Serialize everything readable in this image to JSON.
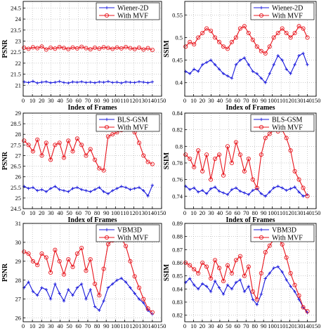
{
  "colors": {
    "red": "#e8141c",
    "blue": "#1a1adc",
    "axis": "#000000",
    "grid": "#9a9a9a"
  },
  "chart_data": [
    {
      "id": "p1",
      "type": "line",
      "ylabel": "PSNR",
      "xlabel": "Index of Frames",
      "xlim": [
        0,
        150
      ],
      "xticks": [
        "0",
        "10",
        "20",
        "30",
        "40",
        "50",
        "60",
        "70",
        "80",
        "90",
        "100",
        "110",
        "120",
        "130",
        "140",
        "150"
      ],
      "ylim": [
        20.5,
        24.8
      ],
      "yticks": [
        "21",
        "21.5",
        "22",
        "22.5",
        "23",
        "23.5",
        "24",
        "24.5"
      ],
      "legend_position": "top-right",
      "grid": true,
      "series": [
        {
          "name": "Wiener-2D",
          "color": "blue",
          "marker": "plus",
          "values": [
            21.15,
            21.12,
            21.18,
            21.1,
            21.14,
            21.16,
            21.11,
            21.13,
            21.17,
            21.12,
            21.1,
            21.15,
            21.13,
            21.16,
            21.12,
            21.14,
            21.11,
            21.15,
            21.13,
            21.17,
            21.12,
            21.14,
            21.1,
            21.15,
            21.13,
            21.12,
            21.16,
            21.14,
            21.11,
            21.15
          ]
        },
        {
          "name": "With MVF",
          "color": "red",
          "marker": "circle",
          "values": [
            22.7,
            22.65,
            22.72,
            22.68,
            22.75,
            22.62,
            22.7,
            22.66,
            22.73,
            22.69,
            22.64,
            22.71,
            22.67,
            22.74,
            22.68,
            22.63,
            22.7,
            22.66,
            22.72,
            22.69,
            22.65,
            22.71,
            22.67,
            22.73,
            22.68,
            22.64,
            22.7,
            22.62,
            22.68,
            22.6
          ]
        }
      ]
    },
    {
      "id": "p2",
      "type": "line",
      "ylabel": "SSIM",
      "xlabel": "Index of Frames",
      "xlim": [
        0,
        150
      ],
      "xticks": [
        "0",
        "10",
        "20",
        "30",
        "40",
        "50",
        "60",
        "70",
        "80",
        "90",
        "100",
        "110",
        "120",
        "130",
        "140",
        "150"
      ],
      "ylim": [
        0.37,
        0.58
      ],
      "yticks": [
        "0.4",
        "0.45",
        "0.5",
        "0.55"
      ],
      "legend_position": "top-right",
      "grid": true,
      "series": [
        {
          "name": "Wiener-2D",
          "color": "blue",
          "marker": "plus",
          "values": [
            0.425,
            0.42,
            0.43,
            0.425,
            0.44,
            0.445,
            0.45,
            0.44,
            0.43,
            0.42,
            0.415,
            0.41,
            0.44,
            0.45,
            0.455,
            0.44,
            0.425,
            0.42,
            0.41,
            0.4,
            0.42,
            0.44,
            0.46,
            0.45,
            0.43,
            0.42,
            0.44,
            0.46,
            0.465,
            0.44
          ]
        },
        {
          "name": "With MVF",
          "color": "red",
          "marker": "circle",
          "values": [
            0.48,
            0.49,
            0.485,
            0.5,
            0.51,
            0.52,
            0.515,
            0.5,
            0.49,
            0.48,
            0.475,
            0.49,
            0.5,
            0.52,
            0.525,
            0.51,
            0.495,
            0.48,
            0.47,
            0.465,
            0.48,
            0.5,
            0.51,
            0.52,
            0.51,
            0.5,
            0.51,
            0.525,
            0.52,
            0.5
          ]
        }
      ]
    },
    {
      "id": "p3",
      "type": "line",
      "ylabel": "PSNR",
      "xlabel": "Index of Frames",
      "xlim": [
        0,
        150
      ],
      "xticks": [
        "0",
        "10",
        "20",
        "30",
        "40",
        "50",
        "60",
        "70",
        "80",
        "90",
        "100",
        "110",
        "120",
        "130",
        "140",
        "150"
      ],
      "ylim": [
        24.5,
        29
      ],
      "yticks": [
        "24.5",
        "25",
        "25.5",
        "26",
        "26.5",
        "27",
        "27.5",
        "28",
        "28.5",
        "29"
      ],
      "legend_position": "top-right",
      "grid": true,
      "series": [
        {
          "name": "BLS-GSM",
          "color": "blue",
          "marker": "plus",
          "values": [
            25.55,
            25.45,
            25.5,
            25.35,
            25.4,
            25.3,
            25.45,
            25.55,
            25.4,
            25.35,
            25.3,
            25.45,
            25.5,
            25.4,
            25.35,
            25.3,
            25.4,
            25.5,
            25.3,
            25.2,
            25.35,
            25.45,
            25.55,
            25.5,
            25.4,
            25.45,
            25.5,
            25.35,
            25.1,
            25.6
          ]
        },
        {
          "name": "With MVF",
          "color": "red",
          "marker": "circle",
          "values": [
            27.7,
            27.5,
            27.2,
            27.75,
            27.0,
            27.6,
            26.8,
            27.5,
            27.6,
            26.9,
            27.7,
            27.2,
            27.8,
            27.5,
            27.0,
            27.3,
            26.8,
            26.4,
            26.3,
            27.9,
            28.0,
            28.1,
            28.2,
            28.3,
            28.4,
            28.1,
            27.6,
            27.0,
            26.7,
            26.6
          ]
        }
      ]
    },
    {
      "id": "p4",
      "type": "line",
      "ylabel": "SSIM",
      "xlabel": "Index of Frames",
      "xlim": [
        0,
        150
      ],
      "xticks": [
        "0",
        "10",
        "20",
        "30",
        "40",
        "50",
        "60",
        "70",
        "80",
        "90",
        "100",
        "110",
        "120",
        "130",
        "140",
        "150"
      ],
      "ylim": [
        0.725,
        0.84
      ],
      "yticks": [
        "0.74",
        "0.76",
        "0.78",
        "0.8",
        "0.82",
        "0.84"
      ],
      "legend_position": "top-right",
      "grid": true,
      "series": [
        {
          "name": "BLS-GSM",
          "color": "blue",
          "marker": "plus",
          "values": [
            0.752,
            0.748,
            0.75,
            0.745,
            0.747,
            0.743,
            0.749,
            0.751,
            0.746,
            0.744,
            0.742,
            0.748,
            0.75,
            0.746,
            0.744,
            0.742,
            0.747,
            0.749,
            0.743,
            0.74,
            0.745,
            0.75,
            0.752,
            0.75,
            0.747,
            0.749,
            0.751,
            0.745,
            0.74,
            0.742
          ]
        },
        {
          "name": "With MVF",
          "color": "red",
          "marker": "circle",
          "values": [
            0.79,
            0.785,
            0.775,
            0.795,
            0.77,
            0.79,
            0.76,
            0.785,
            0.79,
            0.765,
            0.8,
            0.78,
            0.805,
            0.79,
            0.77,
            0.785,
            0.76,
            0.75,
            0.79,
            0.81,
            0.815,
            0.82,
            0.818,
            0.82,
            0.81,
            0.795,
            0.77,
            0.76,
            0.75,
            0.74
          ]
        }
      ]
    },
    {
      "id": "p5",
      "type": "line",
      "ylabel": "PSNR",
      "xlabel": "Index of Frames",
      "xlim": [
        0,
        150
      ],
      "xticks": [
        "0",
        "10",
        "20",
        "30",
        "40",
        "50",
        "60",
        "70",
        "80",
        "90",
        "100",
        "110",
        "120",
        "130",
        "140",
        "150"
      ],
      "ylim": [
        25.8,
        31
      ],
      "yticks": [
        "26",
        "27",
        "28",
        "29",
        "30",
        "31"
      ],
      "legend_position": "top-right",
      "grid": true,
      "series": [
        {
          "name": "VBM3D",
          "color": "blue",
          "marker": "plus",
          "values": [
            27.6,
            27.9,
            27.4,
            27.2,
            27.6,
            27.5,
            27.0,
            27.8,
            27.3,
            26.9,
            27.5,
            27.2,
            27.6,
            27.8,
            27.0,
            27.5,
            26.6,
            26.4,
            26.9,
            27.6,
            27.8,
            28.0,
            28.1,
            27.9,
            27.6,
            27.3,
            27.0,
            26.8,
            26.4,
            26.2
          ]
        },
        {
          "name": "With MVF",
          "color": "red",
          "marker": "circle",
          "values": [
            29.5,
            29.4,
            29.0,
            28.8,
            29.4,
            29.2,
            28.4,
            29.6,
            29.0,
            28.3,
            29.1,
            28.7,
            29.4,
            29.7,
            28.5,
            29.1,
            27.8,
            27.2,
            28.6,
            29.9,
            30.1,
            30.3,
            30.2,
            29.8,
            29.0,
            28.2,
            27.6,
            27.0,
            26.5,
            26.3
          ]
        }
      ]
    },
    {
      "id": "p6",
      "type": "line",
      "ylabel": "SSIM",
      "xlabel": "Index of Frames",
      "xlim": [
        0,
        150
      ],
      "xticks": [
        "0",
        "10",
        "20",
        "30",
        "40",
        "50",
        "60",
        "70",
        "80",
        "90",
        "100",
        "110",
        "120",
        "130",
        "140",
        "150"
      ],
      "ylim": [
        0.815,
        0.89
      ],
      "yticks": [
        "0.82",
        "0.83",
        "0.84",
        "0.85",
        "0.86",
        "0.87",
        "0.88",
        "0.89"
      ],
      "legend_position": "top-right",
      "grid": true,
      "series": [
        {
          "name": "VBM3D",
          "color": "blue",
          "marker": "plus",
          "values": [
            0.845,
            0.848,
            0.843,
            0.84,
            0.844,
            0.842,
            0.838,
            0.846,
            0.841,
            0.836,
            0.843,
            0.84,
            0.845,
            0.847,
            0.838,
            0.842,
            0.832,
            0.828,
            0.836,
            0.848,
            0.852,
            0.856,
            0.857,
            0.853,
            0.847,
            0.842,
            0.838,
            0.832,
            0.826,
            0.822
          ]
        },
        {
          "name": "With MVF",
          "color": "red",
          "marker": "circle",
          "values": [
            0.86,
            0.858,
            0.855,
            0.852,
            0.86,
            0.857,
            0.848,
            0.862,
            0.856,
            0.846,
            0.858,
            0.852,
            0.862,
            0.865,
            0.85,
            0.857,
            0.838,
            0.832,
            0.852,
            0.868,
            0.873,
            0.878,
            0.879,
            0.874,
            0.864,
            0.852,
            0.843,
            0.835,
            0.826,
            0.823
          ]
        }
      ]
    }
  ]
}
